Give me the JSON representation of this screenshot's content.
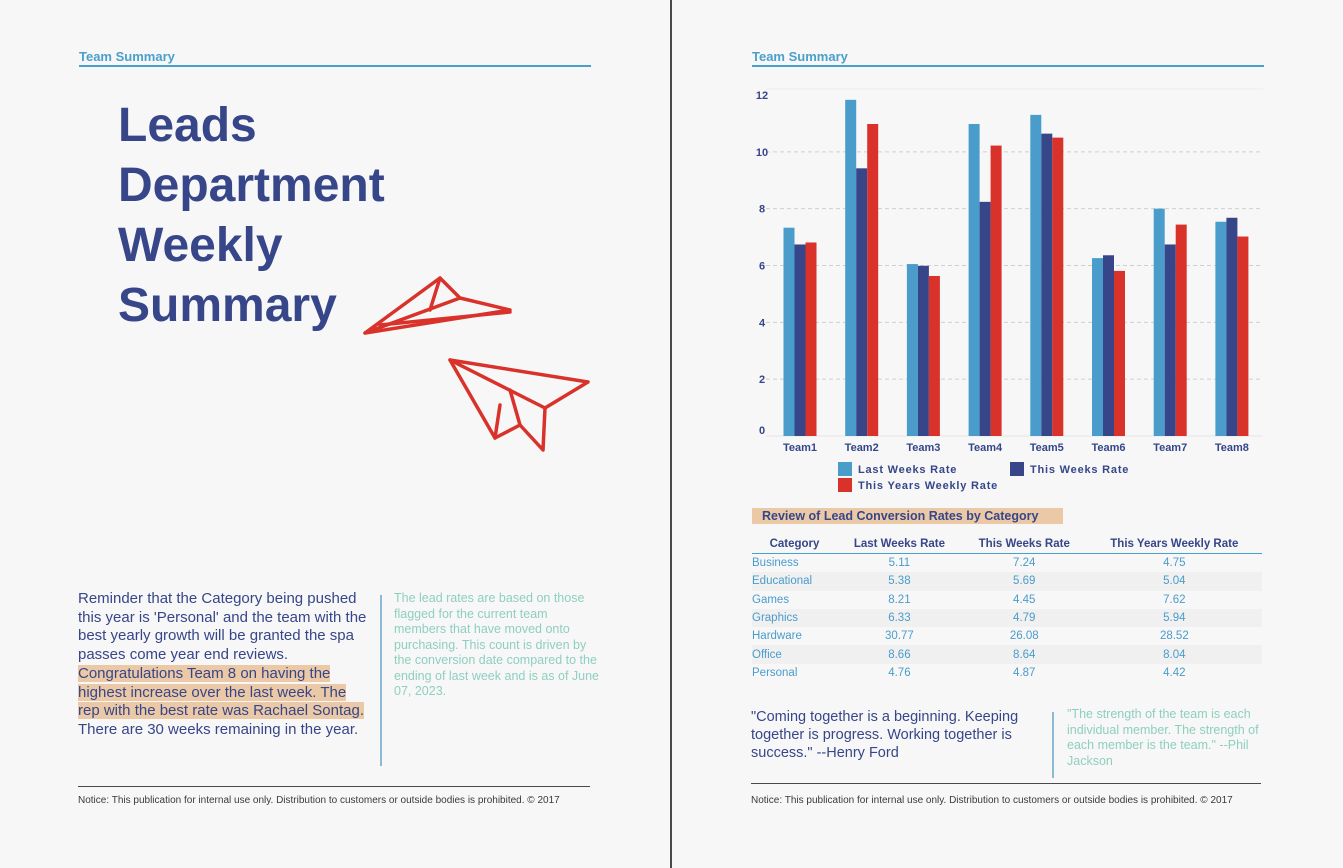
{
  "left_page": {
    "header": "Team Summary",
    "title": "Leads Department Weekly Summary",
    "reminder": {
      "plain": "Reminder that the Category being pushed this year is 'Personal' and the team with the best yearly growth will be granted the spa passes come year end reviews. ",
      "highlighted": "Congratulations Team 8 on having the highest increase over the last week. The rep with the best rate was Rachael Sontag.",
      "remaining": "There are 30 weeks remaining in the year."
    },
    "side_note": "The lead rates are based on those flagged for the current team members that have moved onto purchasing. This count is driven by the conversion date compared to the ending of last week and is as of June 07, 2023.",
    "notice": "Notice:  This publication for internal use only. Distribution to customers or outside bodies is prohibited. © 2017",
    "decoration_icons": [
      "paper-plane-icon",
      "paper-plane-icon"
    ],
    "accent_color": "#d8322a"
  },
  "right_page": {
    "header": "Team Summary",
    "table": {
      "title": "Review of Lead Conversion Rates by Category",
      "columns": [
        "Category",
        "Last Weeks Rate",
        "This Weeks Rate",
        "This Years Weekly Rate"
      ],
      "rows": [
        [
          "Business",
          "5.11",
          "7.24",
          "4.75"
        ],
        [
          "Educational",
          "5.38",
          "5.69",
          "5.04"
        ],
        [
          "Games",
          "8.21",
          "4.45",
          "7.62"
        ],
        [
          "Graphics",
          "6.33",
          "4.79",
          "5.94"
        ],
        [
          "Hardware",
          "30.77",
          "26.08",
          "28.52"
        ],
        [
          "Office",
          "8.66",
          "8.64",
          "8.04"
        ],
        [
          "Personal",
          "4.76",
          "4.87",
          "4.42"
        ]
      ]
    },
    "quote": "\"Coming together is a beginning. Keeping together is progress. Working together is success.\" --Henry Ford",
    "side_quote": "\"The strength of the team is each individual member. The strength of each member is the team.\" --Phil Jackson",
    "notice": "Notice:  This publication for internal use only. Distribution to customers or outside bodies is prohibited. © 2017"
  },
  "chart_data": {
    "type": "bar",
    "categories": [
      "Team1",
      "Team2",
      "Team3",
      "Team4",
      "Team5",
      "Team6",
      "Team7",
      "Team8"
    ],
    "series": [
      {
        "name": "Last Weeks Rate",
        "color": "#4a9ccb",
        "values": [
          7.33,
          11.83,
          6.05,
          10.98,
          11.3,
          6.26,
          8.0,
          7.54
        ]
      },
      {
        "name": "This Weeks Rate",
        "color": "#364689",
        "values": [
          6.74,
          9.42,
          5.99,
          8.24,
          10.64,
          6.36,
          6.74,
          7.68
        ]
      },
      {
        "name": "This Years Weekly Rate",
        "color": "#d8322a",
        "values": [
          6.81,
          10.98,
          5.63,
          10.22,
          10.5,
          5.81,
          7.44,
          7.02
        ]
      }
    ],
    "yticks": [
      "0",
      "2",
      "4",
      "6",
      "8",
      "10",
      "12"
    ],
    "ylim": [
      0,
      12
    ],
    "grid": true,
    "legend": "bottom",
    "title": "",
    "xlabel": "",
    "ylabel": ""
  }
}
